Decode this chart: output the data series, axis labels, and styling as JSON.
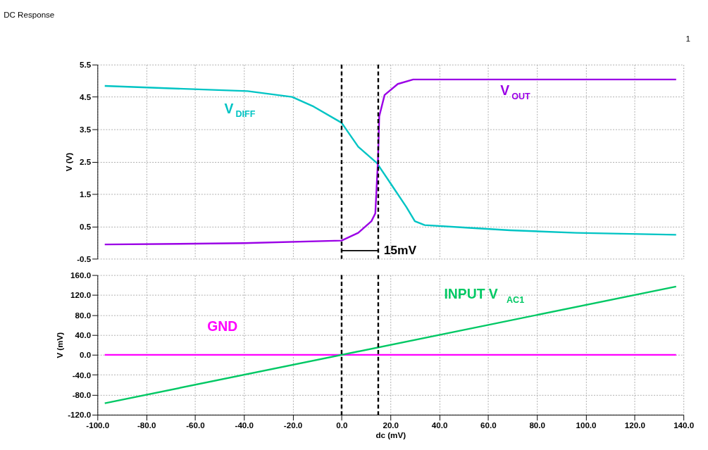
{
  "chart_data": [
    {
      "type": "line",
      "title": "DC Response",
      "ylabel": "V (V)",
      "xlim": [
        -100,
        140
      ],
      "ylim": [
        -0.5,
        5.5
      ],
      "xticks": [
        {
          "value": -100,
          "label": "-100.0"
        },
        {
          "value": -80,
          "label": "-80.0"
        },
        {
          "value": -60,
          "label": "-60.0"
        },
        {
          "value": -40,
          "label": "-40.0"
        },
        {
          "value": -20,
          "label": "-20.0"
        },
        {
          "value": 0,
          "label": "0.0"
        },
        {
          "value": 20,
          "label": "20.0"
        },
        {
          "value": 40,
          "label": "40.0"
        },
        {
          "value": 60,
          "label": "60.0"
        },
        {
          "value": 80,
          "label": "80.0"
        },
        {
          "value": 100,
          "label": "100.0"
        },
        {
          "value": 120,
          "label": "120.0"
        },
        {
          "value": 140,
          "label": "140.0"
        }
      ],
      "yticks": [
        -0.5,
        0.5,
        1.5,
        2.5,
        3.5,
        4.5,
        5.5
      ],
      "tick_labels": "y",
      "grid": true,
      "line_style": "solid",
      "marker": "none",
      "series": [
        {
          "name": "V$_{DIFF}$",
          "color": "#00c4c4",
          "x": [
            -97,
            -38.5,
            -20.3,
            -11.4,
            0,
            6.8,
            14.4,
            20.3,
            26.5,
            30,
            34,
            51,
            69,
            96,
            137
          ],
          "values": [
            4.84,
            4.68,
            4.5,
            4.2,
            3.7,
            2.96,
            2.46,
            1.8,
            1.1,
            0.66,
            0.54,
            0.46,
            0.38,
            0.3,
            0.24
          ]
        },
        {
          "name": "V$_{OUT}$",
          "color": "#9b00e6",
          "x": [
            -97,
            -40,
            0,
            6.8,
            12.2,
            13.8,
            14.9,
            15.4,
            17.6,
            23,
            29.3,
            137
          ],
          "values": [
            -0.06,
            -0.02,
            0.06,
            0.3,
            0.66,
            0.9,
            2.56,
            3.9,
            4.56,
            4.9,
            5.04,
            5.04
          ]
        }
      ],
      "ref_lines": [
        {
          "axis": "x",
          "value": 0,
          "color": "#000000",
          "line_style": "dashed"
        },
        {
          "axis": "x",
          "value": 15,
          "color": "#000000",
          "line_style": "dashed"
        }
      ],
      "annotations": [
        {
          "text": "15mV",
          "x": 15,
          "y": -0.25
        },
        "1"
      ]
    },
    {
      "type": "line",
      "xlabel": "dc (mV)",
      "ylabel": "V (mV)",
      "xlim": [
        -100,
        140
      ],
      "ylim": [
        -120,
        160
      ],
      "xticks": [
        {
          "value": -100,
          "label": "-100.0"
        },
        {
          "value": -80,
          "label": "-80.0"
        },
        {
          "value": -60,
          "label": "-60.0"
        },
        {
          "value": -40,
          "label": "-40.0"
        },
        {
          "value": -20,
          "label": "-20.0"
        },
        {
          "value": 0,
          "label": "0.0"
        },
        {
          "value": 20,
          "label": "20.0"
        },
        {
          "value": 40,
          "label": "40.0"
        },
        {
          "value": 60,
          "label": "60.0"
        },
        {
          "value": 80,
          "label": "80.0"
        },
        {
          "value": 100,
          "label": "100.0"
        },
        {
          "value": 120,
          "label": "120.0"
        },
        {
          "value": 140,
          "label": "140.0"
        }
      ],
      "yticks": [
        {
          "value": -120,
          "label": "-120.0"
        },
        {
          "value": -80,
          "label": "-80.0"
        },
        {
          "value": -40,
          "label": "-40.0"
        },
        {
          "value": 0,
          "label": "0.0"
        },
        {
          "value": 40,
          "label": "40.0"
        },
        {
          "value": 80,
          "label": "80.0"
        },
        {
          "value": 120,
          "label": "120.0"
        },
        {
          "value": 160,
          "label": "160.0"
        }
      ],
      "grid": true,
      "line_style": "solid",
      "marker": "none",
      "series": [
        {
          "name": "GND",
          "color": "#ff00ff",
          "x": [
            -97,
            137
          ],
          "values": [
            0,
            0
          ]
        },
        {
          "name": "INPUT V $_{AC1}$",
          "color": "#00c864",
          "x": [
            -97,
            137
          ],
          "values": [
            -97,
            137
          ]
        }
      ],
      "ref_lines": [
        {
          "axis": "x",
          "value": 0,
          "color": "#000000",
          "line_style": "dashed"
        },
        {
          "axis": "x",
          "value": 15,
          "color": "#000000",
          "line_style": "dashed"
        }
      ]
    }
  ]
}
